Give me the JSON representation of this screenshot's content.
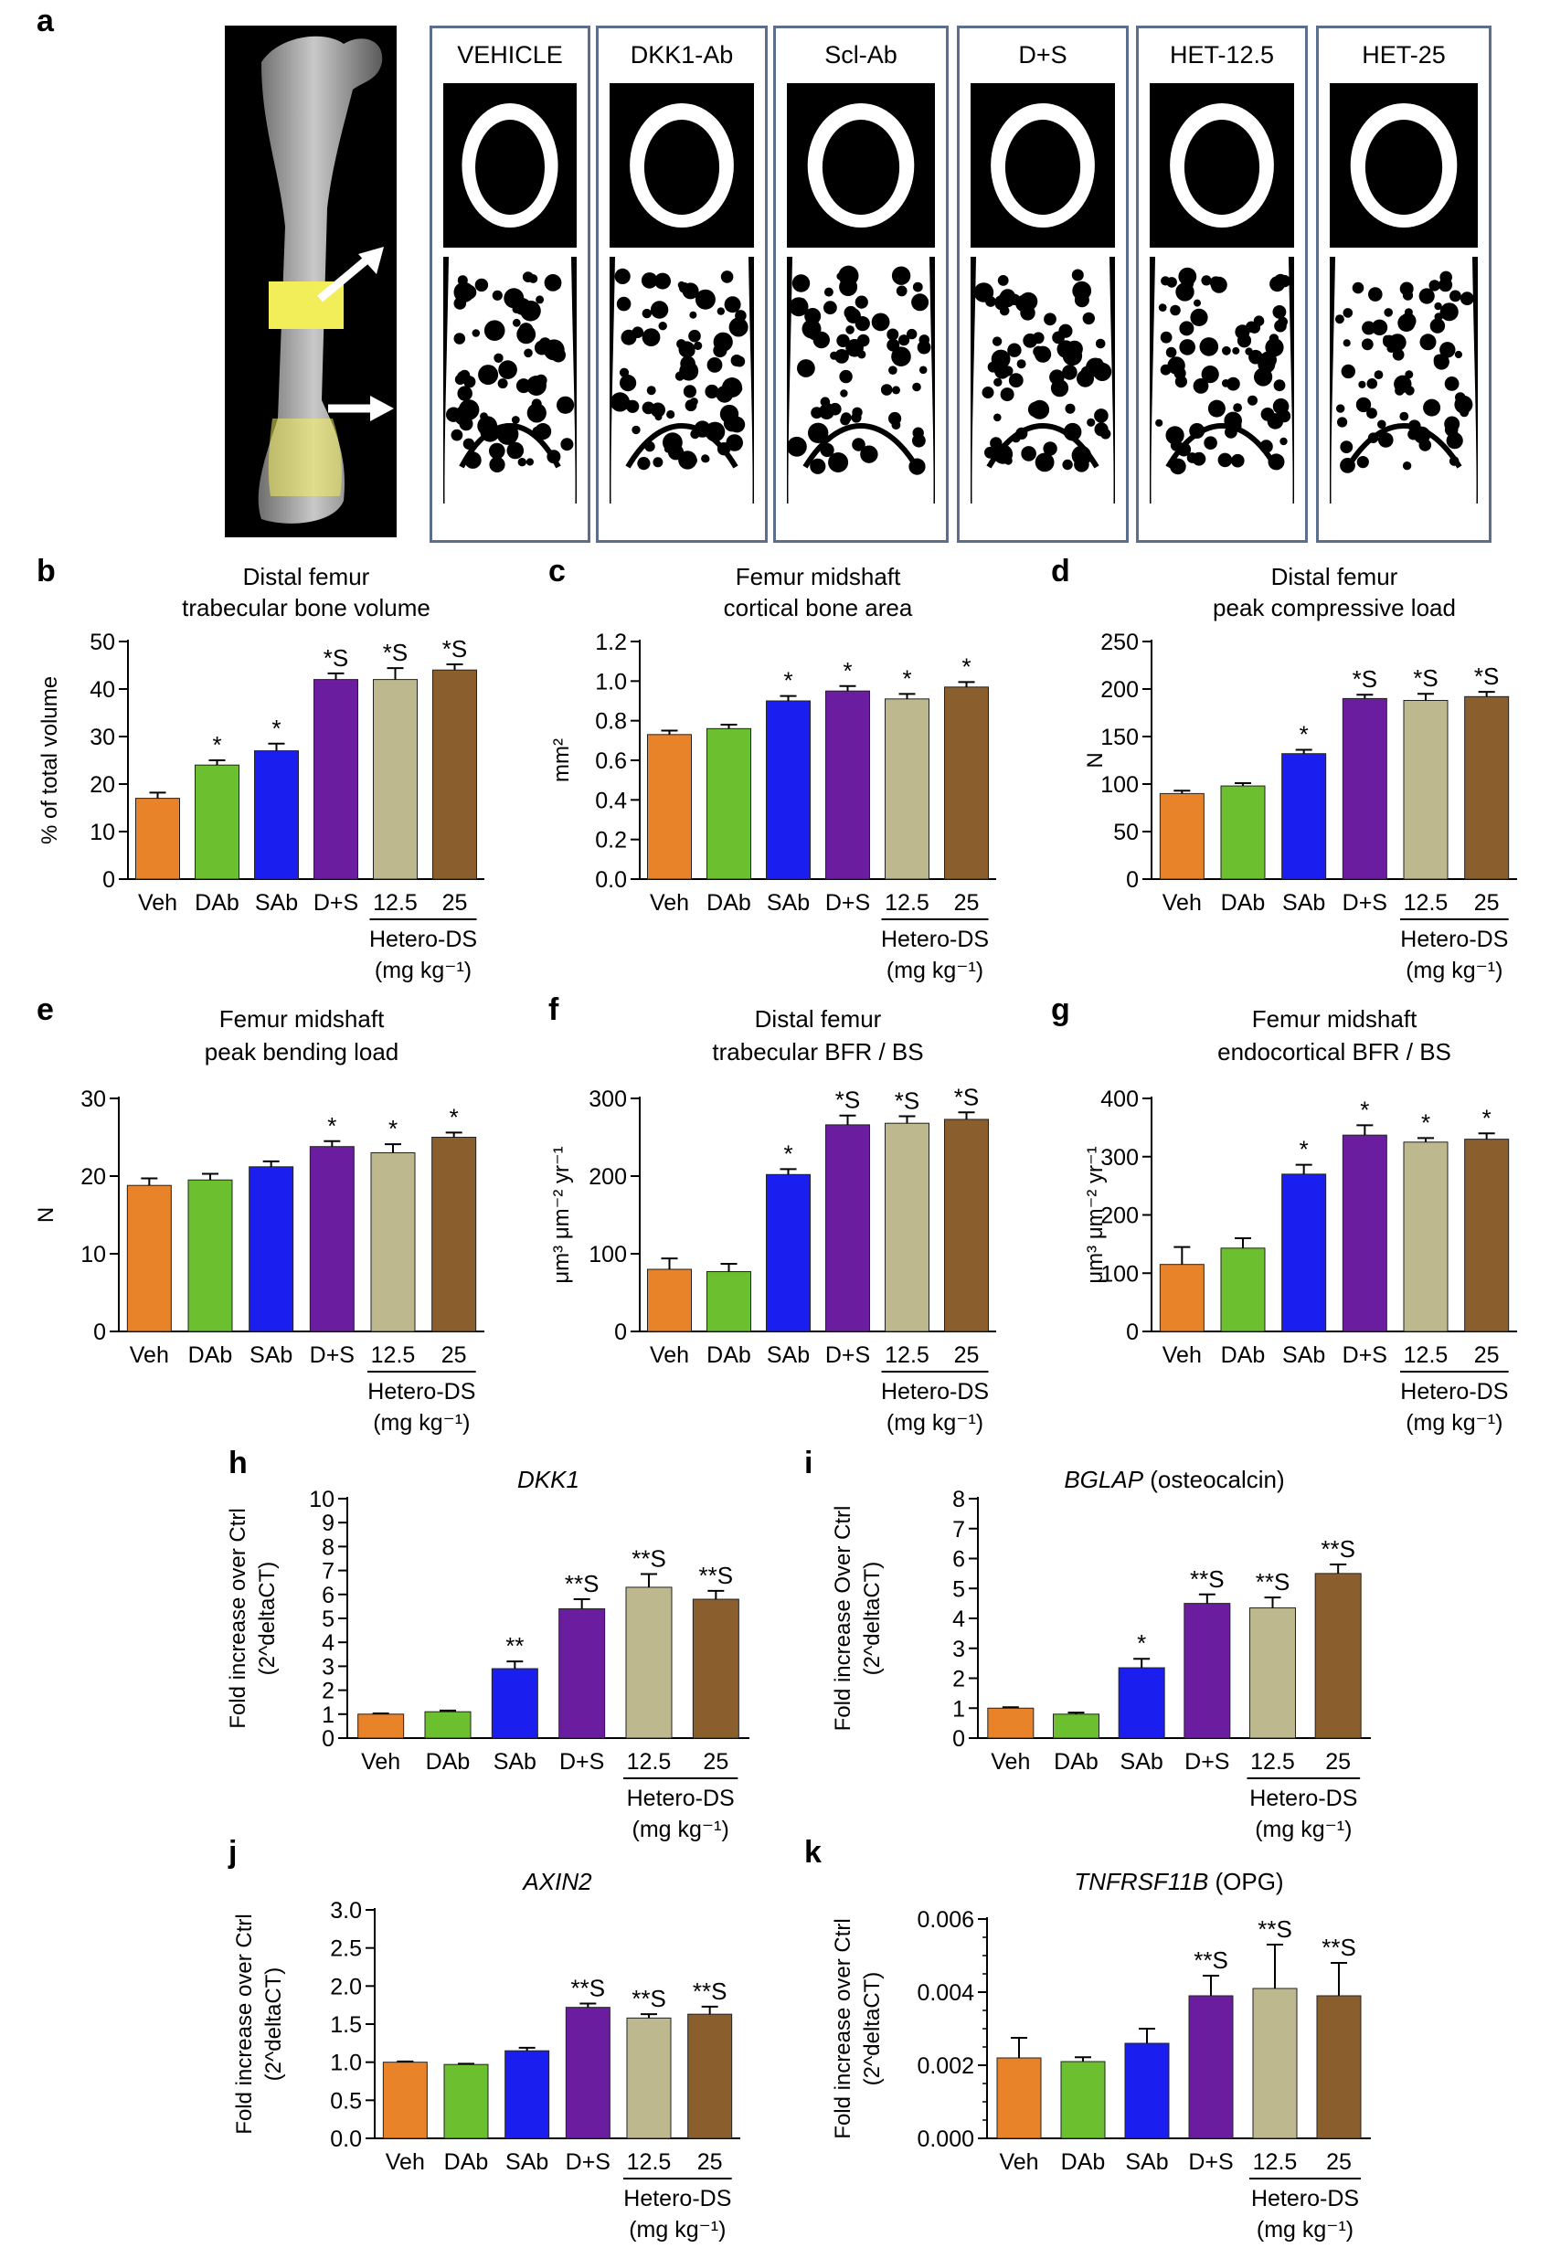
{
  "panel_a": {
    "label": "a",
    "groups": [
      "VEHICLE",
      "DKK1-Ab",
      "Scl-Ab",
      "D+S",
      "HET-12.5",
      "HET-25"
    ]
  },
  "colors": {
    "Veh": "#e8832a",
    "DAb": "#6cbf2e",
    "SAb": "#1a1ff0",
    "D+S": "#6a1d9e",
    "12.5": "#bdb88e",
    "25": "#8a5e2d",
    "highlight": "#f2ee5a"
  },
  "icons": [
    "femur-scan-image",
    "arrow-icon"
  ],
  "shared": {
    "group_label": "Hetero-DS",
    "unit_label": "(mg kg⁻¹)"
  },
  "chart_data": [
    {
      "id": "b",
      "label": "b",
      "type": "bar",
      "title": [
        "Distal femur",
        "trabecular bone volume"
      ],
      "ylabel": "% of total volume",
      "ylim": [
        0,
        50
      ],
      "yticks": [
        0,
        10,
        20,
        30,
        40,
        50
      ],
      "ytick_labels": [
        "0",
        "10",
        "20",
        "30",
        "40",
        "50"
      ],
      "categories": [
        "Veh",
        "DAb",
        "SAb",
        "D+S",
        "12.5",
        "25"
      ],
      "values": [
        17,
        24,
        27,
        42,
        42,
        44
      ],
      "errors": [
        1.2,
        1.0,
        1.5,
        1.3,
        2.4,
        1.2
      ],
      "annotations": [
        "",
        "*",
        "*",
        "*S",
        "*S",
        "*S"
      ],
      "show_group_label": true
    },
    {
      "id": "c",
      "label": "c",
      "type": "bar",
      "title": [
        "Femur  midshaft",
        "cortical bone area"
      ],
      "ylabel": "mm²",
      "ylim": [
        0,
        1.2
      ],
      "yticks": [
        0,
        0.2,
        0.4,
        0.6,
        0.8,
        1.0,
        1.2
      ],
      "ytick_labels": [
        "0.0",
        "0.2",
        "0.4",
        "0.6",
        "0.8",
        "1.0",
        "1.2"
      ],
      "categories": [
        "Veh",
        "DAb",
        "SAb",
        "D+S",
        "12.5",
        "25"
      ],
      "values": [
        0.73,
        0.76,
        0.9,
        0.95,
        0.91,
        0.97
      ],
      "errors": [
        0.02,
        0.02,
        0.025,
        0.025,
        0.025,
        0.025
      ],
      "annotations": [
        "",
        "",
        "*",
        "*",
        "*",
        "*"
      ],
      "show_group_label": true
    },
    {
      "id": "d",
      "label": "d",
      "type": "bar",
      "title": [
        "Distal femur",
        "peak compressive load"
      ],
      "ylabel": "N",
      "ylim": [
        0,
        250
      ],
      "yticks": [
        0,
        50,
        100,
        150,
        200,
        250
      ],
      "ytick_labels": [
        "0",
        "50",
        "100",
        "150",
        "200",
        "250"
      ],
      "categories": [
        "Veh",
        "DAb",
        "SAb",
        "D+S",
        "12.5",
        "25"
      ],
      "values": [
        90,
        98,
        132,
        190,
        188,
        192
      ],
      "errors": [
        3,
        3,
        4,
        4,
        7,
        5
      ],
      "annotations": [
        "",
        "",
        "*",
        "*S",
        "*S",
        "*S"
      ],
      "show_group_label": true
    },
    {
      "id": "e",
      "label": "e",
      "type": "bar",
      "title": [
        "Femur midshaft",
        "peak bending load"
      ],
      "ylabel": "N",
      "ylim": [
        0,
        30
      ],
      "yticks": [
        0,
        10,
        20,
        30
      ],
      "ytick_labels": [
        "0",
        "10",
        "20",
        "30"
      ],
      "categories": [
        "Veh",
        "DAb",
        "SAb",
        "D+S",
        "12.5",
        "25"
      ],
      "values": [
        18.8,
        19.5,
        21.2,
        23.8,
        23.0,
        25.0
      ],
      "errors": [
        0.9,
        0.8,
        0.7,
        0.7,
        1.1,
        0.6
      ],
      "annotations": [
        "",
        "",
        "",
        "*",
        "*",
        "*"
      ],
      "show_group_label": true
    },
    {
      "id": "f",
      "label": "f",
      "type": "bar",
      "title": [
        "Distal femur",
        "trabecular BFR / BS"
      ],
      "ylabel": "μm³ μm⁻² yr⁻¹",
      "ylim": [
        0,
        300
      ],
      "yticks": [
        0,
        100,
        200,
        300
      ],
      "ytick_labels": [
        "0",
        "100",
        "200",
        "300"
      ],
      "categories": [
        "Veh",
        "DAb",
        "SAb",
        "D+S",
        "12.5",
        "25"
      ],
      "values": [
        80,
        77,
        202,
        266,
        268,
        273
      ],
      "errors": [
        14,
        10,
        7,
        12,
        9,
        9
      ],
      "annotations": [
        "",
        "",
        "*",
        "*S",
        "*S",
        "*S"
      ],
      "show_group_label": true
    },
    {
      "id": "g",
      "label": "g",
      "type": "bar",
      "title": [
        "Femur midshaft",
        "endocortical BFR / BS"
      ],
      "ylabel": "μm³ μm⁻² yr⁻¹",
      "ylim": [
        0,
        400
      ],
      "yticks": [
        0,
        100,
        200,
        300,
        400
      ],
      "ytick_labels": [
        "0",
        "100",
        "200",
        "300",
        "400"
      ],
      "categories": [
        "Veh",
        "DAb",
        "SAb",
        "D+S",
        "12.5",
        "25"
      ],
      "values": [
        115,
        143,
        270,
        337,
        325,
        330
      ],
      "errors": [
        30,
        17,
        16,
        17,
        7,
        10
      ],
      "annotations": [
        "",
        "",
        "*",
        "*",
        "*",
        "*"
      ],
      "show_group_label": true
    },
    {
      "id": "h",
      "label": "h",
      "type": "bar",
      "title": [
        "DKK1"
      ],
      "title_italic": "DKK1",
      "title_suffix": "",
      "ylabel": [
        "Fold increase over Ctrl",
        "(2^deltaCT)"
      ],
      "ylim": [
        0,
        10
      ],
      "yticks": [
        0,
        1,
        2,
        3,
        4,
        5,
        6,
        7,
        8,
        9,
        10
      ],
      "ytick_labels": [
        "0",
        "1",
        "2",
        "3",
        "4",
        "5",
        "6",
        "7",
        "8",
        "9",
        "10"
      ],
      "categories": [
        "Veh",
        "DAb",
        "SAb",
        "D+S",
        "12.5",
        "25"
      ],
      "values": [
        1.0,
        1.1,
        2.9,
        5.4,
        6.3,
        5.8
      ],
      "errors": [
        0.03,
        0.05,
        0.3,
        0.4,
        0.55,
        0.35
      ],
      "annotations": [
        "",
        "",
        "**",
        "**S",
        "**S",
        "**S"
      ],
      "show_group_label": true
    },
    {
      "id": "i",
      "label": "i",
      "type": "bar",
      "title_italic": "BGLAP",
      "title_suffix": " (osteocalcin)",
      "ylabel": [
        "Fold increase Over Ctrl",
        "(2^deltaCT)"
      ],
      "ylim": [
        0,
        8
      ],
      "yticks": [
        0,
        1,
        2,
        3,
        4,
        5,
        6,
        7,
        8
      ],
      "ytick_labels": [
        "0",
        "1",
        "2",
        "3",
        "4",
        "5",
        "6",
        "7",
        "8"
      ],
      "categories": [
        "Veh",
        "DAb",
        "SAb",
        "D+S",
        "12.5",
        "25"
      ],
      "values": [
        1.0,
        0.8,
        2.35,
        4.5,
        4.35,
        5.5
      ],
      "errors": [
        0.03,
        0.05,
        0.3,
        0.3,
        0.35,
        0.3
      ],
      "annotations": [
        "",
        "",
        "*",
        "**S",
        "**S",
        "**S"
      ],
      "show_group_label": true
    },
    {
      "id": "j",
      "label": "j",
      "type": "bar",
      "title_italic": "AXIN2",
      "title_suffix": "",
      "ylabel": [
        "Fold increase over Ctrl",
        "(2^deltaCT)"
      ],
      "ylim": [
        0,
        3
      ],
      "yticks": [
        0,
        0.5,
        1,
        1.5,
        2,
        2.5,
        3
      ],
      "ytick_labels": [
        "0.0",
        "0.5",
        "1.0",
        "1.5",
        "2.0",
        "2.5",
        "3.0"
      ],
      "categories": [
        "Veh",
        "DAb",
        "SAb",
        "D+S",
        "12.5",
        "25"
      ],
      "values": [
        1.0,
        0.97,
        1.15,
        1.72,
        1.58,
        1.63
      ],
      "errors": [
        0.01,
        0.01,
        0.04,
        0.05,
        0.05,
        0.1
      ],
      "annotations": [
        "",
        "",
        "",
        "**S",
        "**S",
        "**S"
      ],
      "show_group_label": true
    },
    {
      "id": "k",
      "label": "k",
      "type": "bar",
      "title_italic": "TNFRSF11B",
      "title_suffix": " (OPG)",
      "ylabel": [
        "Fold increase over Ctrl",
        "(2^deltaCT)"
      ],
      "ylim": [
        0,
        0.006
      ],
      "yticks": [
        0,
        0.002,
        0.004,
        0.006
      ],
      "ytick_labels": [
        "0.000",
        "0.002",
        "0.004",
        "0.006"
      ],
      "categories": [
        "Veh",
        "DAb",
        "SAb",
        "D+S",
        "12.5",
        "25"
      ],
      "values": [
        0.0022,
        0.0021,
        0.0026,
        0.0039,
        0.0041,
        0.0039
      ],
      "errors": [
        0.00055,
        0.00012,
        0.0004,
        0.00055,
        0.0012,
        0.0009
      ],
      "annotations": [
        "",
        "",
        "",
        "**S",
        "**S",
        "**S"
      ],
      "show_group_label": true
    }
  ]
}
